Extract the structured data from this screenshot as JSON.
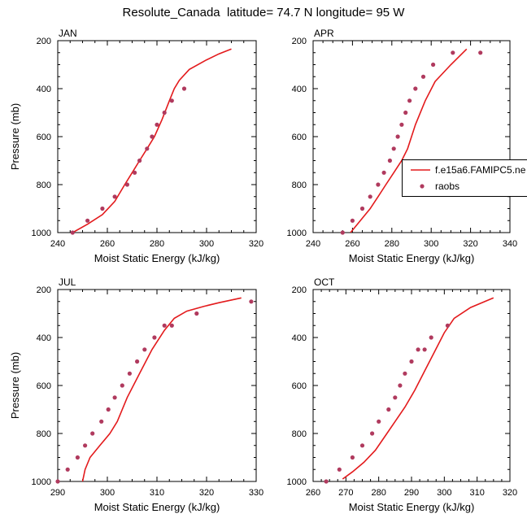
{
  "title": "Resolute_Canada  latitude= 74.7 N longitude= 95 W",
  "colors": {
    "model_line": "#e31a1c",
    "obs_marker": "#b03a5e",
    "axis": "#000000"
  },
  "legend": {
    "model_label": "f.e15a6.FAMIPC5.ne",
    "obs_label": "raobs"
  },
  "chart_data": [
    {
      "type": "line",
      "panel": "JAN",
      "panel_label": "JAN",
      "xlabel": "Moist Static Energy (kJ/kg)",
      "ylabel": "Pressure (mb)",
      "xlim": [
        240,
        320
      ],
      "ylim": [
        1000,
        200
      ],
      "xticks": [
        240,
        260,
        280,
        300,
        320
      ],
      "yticks": [
        200,
        400,
        600,
        800,
        1000
      ],
      "series": [
        {
          "name": "f.e15a6.FAMIPC5.ne",
          "kind": "line",
          "x": [
            246,
            252,
            258,
            263,
            267,
            270,
            273,
            276,
            279,
            282,
            285,
            287,
            289,
            293,
            300,
            305,
            310
          ],
          "y": [
            1000,
            965,
            925,
            870,
            800,
            750,
            700,
            650,
            600,
            530,
            450,
            400,
            365,
            320,
            280,
            255,
            235
          ]
        },
        {
          "name": "raobs",
          "kind": "scatter",
          "x": [
            246,
            252,
            258,
            263,
            268,
            271,
            273,
            276,
            278,
            280,
            283,
            286,
            291
          ],
          "y": [
            1000,
            950,
            900,
            850,
            800,
            750,
            700,
            650,
            600,
            550,
            500,
            450,
            400
          ]
        }
      ]
    },
    {
      "type": "line",
      "panel": "APR",
      "panel_label": "APR",
      "xlabel": "Moist Static Energy (kJ/kg)",
      "ylabel": "",
      "xlim": [
        240,
        340
      ],
      "ylim": [
        1000,
        200
      ],
      "xticks": [
        240,
        260,
        280,
        300,
        320,
        340
      ],
      "yticks": [
        200,
        400,
        600,
        800,
        1000
      ],
      "series": [
        {
          "name": "f.e15a6.FAMIPC5.ne",
          "kind": "line",
          "x": [
            259,
            264,
            269,
            273,
            277,
            281,
            285,
            288,
            292,
            297,
            302,
            310,
            318
          ],
          "y": [
            1000,
            950,
            900,
            850,
            800,
            750,
            700,
            650,
            550,
            450,
            370,
            300,
            235
          ]
        },
        {
          "name": "raobs",
          "kind": "scatter",
          "x": [
            255,
            260,
            265,
            269,
            273,
            276,
            279,
            281,
            283,
            285,
            287,
            289,
            292,
            296,
            301,
            311,
            325
          ],
          "y": [
            1000,
            950,
            900,
            850,
            800,
            750,
            700,
            650,
            600,
            550,
            500,
            450,
            400,
            350,
            300,
            250,
            250
          ]
        }
      ]
    },
    {
      "type": "line",
      "panel": "JUL",
      "panel_label": "JUL",
      "xlabel": "Moist Static Energy (kJ/kg)",
      "ylabel": "Pressure (mb)",
      "xlim": [
        290,
        330
      ],
      "ylim": [
        1000,
        200
      ],
      "xticks": [
        290,
        300,
        310,
        320,
        330
      ],
      "yticks": [
        200,
        400,
        600,
        800,
        1000
      ],
      "series": [
        {
          "name": "f.e15a6.FAMIPC5.ne",
          "kind": "line",
          "x": [
            295,
            295.5,
            296.5,
            298.5,
            300.5,
            302,
            304,
            306.5,
            309,
            311.5,
            313.5,
            316,
            319.5,
            322.5,
            327
          ],
          "y": [
            1000,
            950,
            900,
            850,
            800,
            750,
            650,
            550,
            450,
            370,
            320,
            290,
            270,
            255,
            235
          ]
        },
        {
          "name": "raobs",
          "kind": "scatter",
          "x": [
            290,
            292,
            294,
            295.5,
            297,
            298.8,
            300.2,
            301.5,
            303,
            304.5,
            306,
            307.5,
            309.5,
            311.5,
            313,
            318,
            329
          ],
          "y": [
            1000,
            950,
            900,
            850,
            800,
            750,
            700,
            650,
            600,
            550,
            500,
            450,
            400,
            350,
            350,
            300,
            250
          ]
        }
      ]
    },
    {
      "type": "line",
      "panel": "OCT",
      "panel_label": "OCT",
      "xlabel": "Moist Static Energy (kJ/kg)",
      "ylabel": "",
      "xlim": [
        260,
        320
      ],
      "ylim": [
        1000,
        200
      ],
      "xticks": [
        260,
        270,
        280,
        290,
        300,
        310,
        320
      ],
      "yticks": [
        200,
        400,
        600,
        800,
        1000
      ],
      "series": [
        {
          "name": "f.e15a6.FAMIPC5.ne",
          "kind": "line",
          "x": [
            269,
            272,
            275.5,
            279,
            282,
            285,
            288,
            291,
            294,
            297,
            300,
            303,
            308,
            315
          ],
          "y": [
            990,
            960,
            920,
            870,
            810,
            750,
            690,
            620,
            540,
            460,
            380,
            320,
            275,
            235
          ]
        },
        {
          "name": "raobs",
          "kind": "scatter",
          "x": [
            264,
            268,
            272,
            275,
            278,
            280,
            283,
            285,
            286.5,
            288,
            290,
            292,
            294,
            296,
            301
          ],
          "y": [
            1000,
            950,
            900,
            850,
            800,
            750,
            700,
            650,
            600,
            550,
            500,
            450,
            450,
            400,
            350
          ]
        }
      ]
    }
  ]
}
